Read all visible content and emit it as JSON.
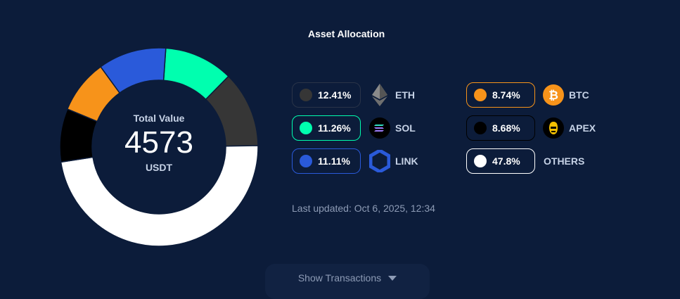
{
  "title": "Asset Allocation",
  "total": {
    "label": "Total Value",
    "value": "4573",
    "unit": "USDT"
  },
  "chart_data": {
    "type": "pie",
    "title": "Asset Allocation",
    "order": [
      "SOL",
      "ETH",
      "OTHERS",
      "APEX",
      "BTC",
      "LINK"
    ],
    "slices": [
      {
        "name": "SOL",
        "value": 11.26,
        "color": "#00ffaf"
      },
      {
        "name": "ETH",
        "value": 12.41,
        "color": "#363636"
      },
      {
        "name": "OTHERS",
        "value": 47.8,
        "color": "#ffffff"
      },
      {
        "name": "APEX",
        "value": 8.68,
        "color": "#000000"
      },
      {
        "name": "BTC",
        "value": 8.74,
        "color": "#f7931a"
      },
      {
        "name": "LINK",
        "value": 11.11,
        "color": "#2a5ada"
      }
    ]
  },
  "legend": [
    {
      "pct": "12.41%",
      "name": "ETH",
      "color": "#363636",
      "border": "#2a3448",
      "icon": "eth-icon"
    },
    {
      "pct": "11.26%",
      "name": "SOL",
      "color": "#00ffaf",
      "border": "#00ffaf",
      "icon": "sol-icon"
    },
    {
      "pct": "11.11%",
      "name": "LINK",
      "color": "#2a5ada",
      "border": "#2a5ada",
      "icon": "link-icon"
    },
    {
      "pct": "8.74%",
      "name": "BTC",
      "color": "#f7931a",
      "border": "#f7931a",
      "icon": "btc-icon"
    },
    {
      "pct": "8.68%",
      "name": "APEX",
      "color": "#000000",
      "border": "#000000",
      "icon": "apex-icon"
    },
    {
      "pct": "47.8%",
      "name": "OTHERS",
      "color": "#ffffff",
      "border": "#ffffff",
      "icon": ""
    }
  ],
  "updated": "Last updated: Oct 6, 2025, 12:34",
  "show_transactions": "Show Transactions"
}
